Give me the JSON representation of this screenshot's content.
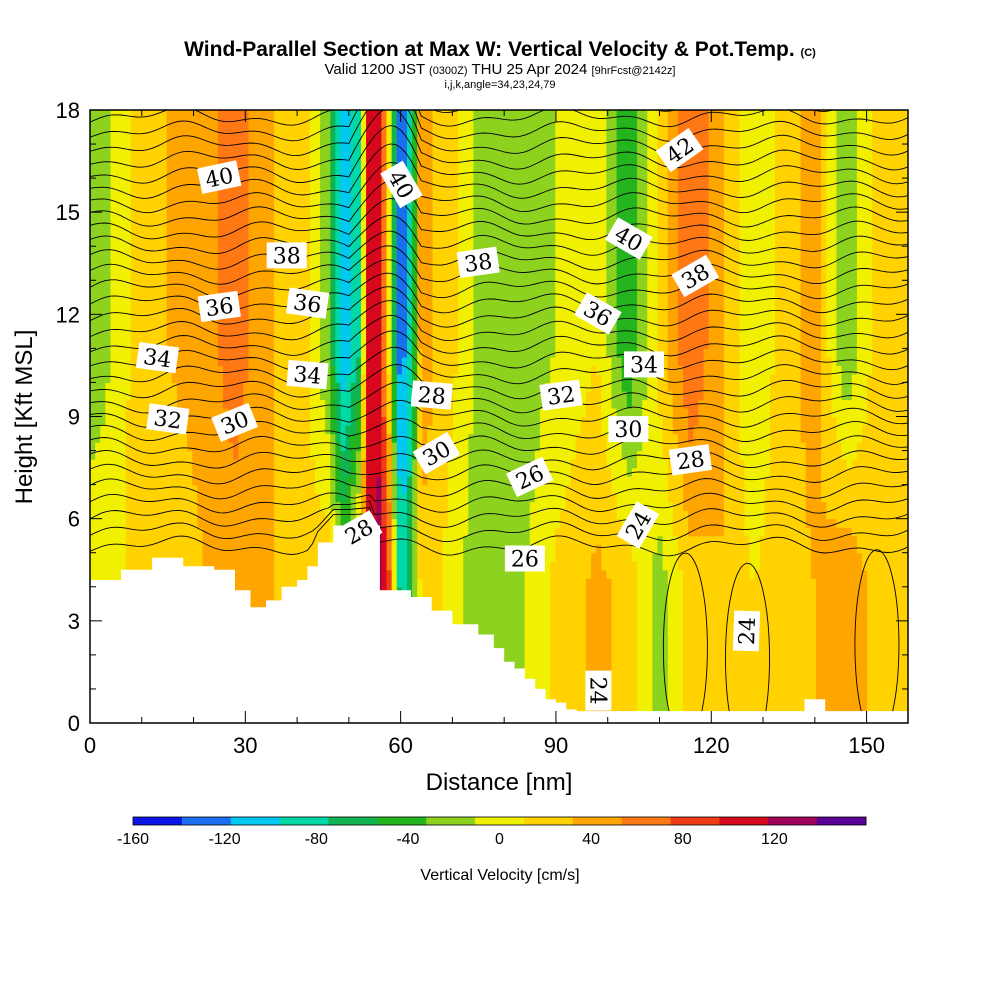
{
  "header": {
    "title": "Wind-Parallel Section at Max W: Vertical Velocity & Pot.Temp.",
    "copyright": "(C)",
    "valid_prefix": "Valid 1200 JST",
    "valid_utc": "(0300Z)",
    "valid_date": "THU 25 Apr 2024",
    "forecast": "[9hrFcst@2142z]",
    "indices": "i,j,k,angle=34,23,24,79"
  },
  "chart_data": {
    "type": "heatmap",
    "xlabel": "Distance [nm]",
    "ylabel": "Height [Kft MSL]",
    "xlim": [
      0,
      158
    ],
    "ylim": [
      0,
      18
    ],
    "x_ticks": [
      "0",
      "30",
      "60",
      "90",
      "120",
      "150"
    ],
    "y_ticks": [
      "0",
      "3",
      "6",
      "9",
      "12",
      "15",
      "18"
    ],
    "colorbar": {
      "title": "Vertical Velocity [cm/s]",
      "labels": [
        "-160",
        "-120",
        "-80",
        "-40",
        "0",
        "40",
        "80",
        "120"
      ],
      "bounds": [
        -160,
        -140,
        -120,
        -100,
        -80,
        -60,
        -40,
        -20,
        0,
        20,
        40,
        60,
        80,
        100,
        120,
        140
      ],
      "colors": [
        "#0a14e6",
        "#1a6ef0",
        "#00c8f0",
        "#00d8a8",
        "#10b450",
        "#24b41e",
        "#8cd21e",
        "#f0f000",
        "#ffd200",
        "#ffa500",
        "#ff7814",
        "#f03c14",
        "#d7081e",
        "#a0005a",
        "#5a0096"
      ]
    },
    "vertical_velocity_cross_section": {
      "x_nm": [
        0,
        5,
        10,
        20,
        28,
        36,
        42,
        46,
        49,
        52,
        54,
        56,
        58,
        60,
        62,
        64,
        67,
        70,
        76,
        82,
        90,
        98,
        104,
        110,
        116,
        122,
        128,
        134,
        140,
        146,
        152,
        158
      ],
      "low_level_cms": [
        0,
        -5,
        10,
        15,
        30,
        20,
        10,
        15,
        -30,
        20,
        90,
        110,
        60,
        -100,
        -60,
        10,
        5,
        -10,
        -40,
        -30,
        5,
        25,
        15,
        -30,
        10,
        20,
        0,
        10,
        20,
        40,
        10,
        0
      ],
      "upper_level_cms": [
        -40,
        -15,
        15,
        25,
        50,
        20,
        0,
        -40,
        -120,
        -80,
        100,
        90,
        -20,
        -140,
        -90,
        40,
        15,
        5,
        -30,
        -35,
        -20,
        0,
        -60,
        10,
        60,
        20,
        -20,
        10,
        30,
        -40,
        10,
        0
      ]
    },
    "potential_temperature_labels": [
      "40",
      "38",
      "36",
      "36",
      "34",
      "34",
      "32",
      "30",
      "30",
      "28",
      "28",
      "26",
      "26",
      "24",
      "24",
      "24",
      "40",
      "38",
      "40",
      "36",
      "32",
      "34",
      "30",
      "28",
      "42",
      "38"
    ],
    "terrain_kft": {
      "x_nm": [
        0,
        6,
        12,
        18,
        24,
        28,
        31,
        34,
        37,
        40,
        42,
        44,
        47,
        50,
        52,
        54,
        56,
        58,
        62,
        66,
        70,
        75,
        78,
        80,
        82,
        84,
        86,
        88,
        90,
        92,
        94,
        134,
        138,
        142,
        158
      ],
      "height": [
        4.2,
        4.5,
        4.85,
        4.6,
        4.5,
        3.9,
        3.4,
        3.6,
        4.0,
        4.2,
        4.6,
        5.3,
        5.8,
        5.8,
        5.8,
        5.8,
        3.9,
        3.9,
        3.7,
        3.3,
        2.9,
        2.6,
        2.2,
        1.8,
        1.6,
        1.3,
        1.0,
        0.7,
        0.6,
        0.4,
        0.35,
        0.35,
        0.7,
        0.35,
        0.35
      ]
    }
  }
}
